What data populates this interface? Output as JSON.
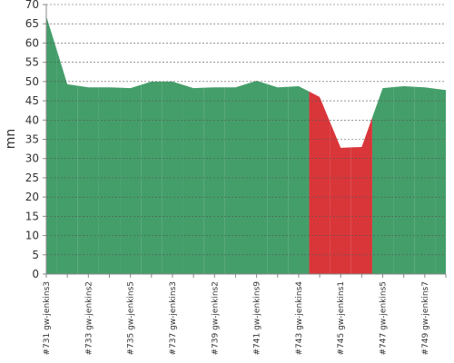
{
  "chart_data": {
    "type": "area",
    "y_label": "mn",
    "categories": [
      "#731 gw-jenkins3",
      null,
      "#733 gw-jenkins2",
      null,
      "#735 gw-jenkins5",
      null,
      "#737 gw-jenkins3",
      null,
      "#739 gw-jenkins2",
      null,
      "#741 gw-jenkins9",
      null,
      "#743 gw-jenkins4",
      null,
      "#745 gw-jenkins1",
      null,
      "#747 gw-jenkins5",
      null,
      "#749 gw-jenkins7",
      null
    ],
    "values": [
      67,
      49.3,
      48.5,
      48.5,
      48.3,
      50,
      50,
      48.3,
      48.5,
      48.5,
      50.2,
      48.5,
      48.8,
      46,
      32.8,
      33,
      48.3,
      48.8,
      48.5,
      47.8
    ],
    "point_colors": [
      "#449e6a",
      "#449e6a",
      "#449e6a",
      "#449e6a",
      "#449e6a",
      "#449e6a",
      "#449e6a",
      "#449e6a",
      "#449e6a",
      "#449e6a",
      "#449e6a",
      "#449e6a",
      "#449e6a",
      "#d9363a",
      "#d9363a",
      "#d9363a",
      "#449e6a",
      "#449e6a",
      "#449e6a",
      "#449e6a"
    ],
    "ylim": [
      0,
      70
    ],
    "yticks": [
      0,
      5,
      10,
      15,
      20,
      25,
      30,
      35,
      40,
      45,
      50,
      55,
      60,
      65,
      70
    ],
    "grid": true
  }
}
